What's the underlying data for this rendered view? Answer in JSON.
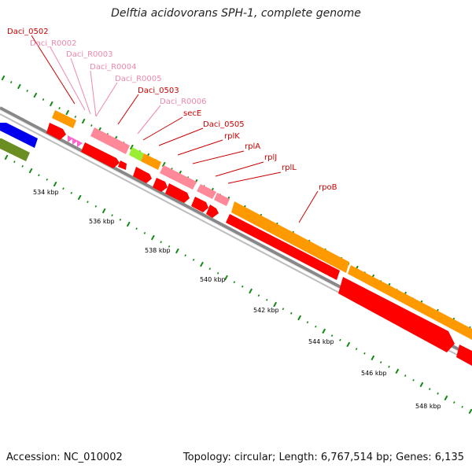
{
  "title": "Delftia acidovorans SPH-1, complete genome",
  "accession": "Accession: NC_010002",
  "summary": "Topology: circular; Length: 6,767,514 bp; Genes: 6,135",
  "colors": {
    "cds": "#ff0000",
    "gene": "#ff9900",
    "rna": "#ff99aa",
    "trna": "#ff66cc",
    "misc": "#99ee33",
    "contig_blue": "#0000ee",
    "contig_green": "#6b8e23",
    "backbone": "#999999",
    "ticks": "#118811",
    "label_dark": "#cc0000",
    "label_light": "#ee88aa"
  },
  "scale_labels": [
    "534 kbp",
    "536 kbp",
    "538 kbp",
    "540 kbp",
    "542 kbp",
    "544 kbp",
    "546 kbp",
    "548 kbp"
  ],
  "feature_labels": [
    {
      "text": "Daci_0502",
      "tone": "dark"
    },
    {
      "text": "Daci_R0002",
      "tone": "light"
    },
    {
      "text": "Daci_R0003",
      "tone": "light"
    },
    {
      "text": "Daci_R0004",
      "tone": "light"
    },
    {
      "text": "Daci_R0005",
      "tone": "light"
    },
    {
      "text": "Daci_0503",
      "tone": "dark"
    },
    {
      "text": "Daci_R0006",
      "tone": "light"
    },
    {
      "text": "secE",
      "tone": "dark"
    },
    {
      "text": "Daci_0505",
      "tone": "dark"
    },
    {
      "text": "rplK",
      "tone": "dark"
    },
    {
      "text": "rplA",
      "tone": "dark"
    },
    {
      "text": "rplJ",
      "tone": "dark"
    },
    {
      "text": "rplL",
      "tone": "dark"
    },
    {
      "text": "rpoB",
      "tone": "dark"
    }
  ]
}
